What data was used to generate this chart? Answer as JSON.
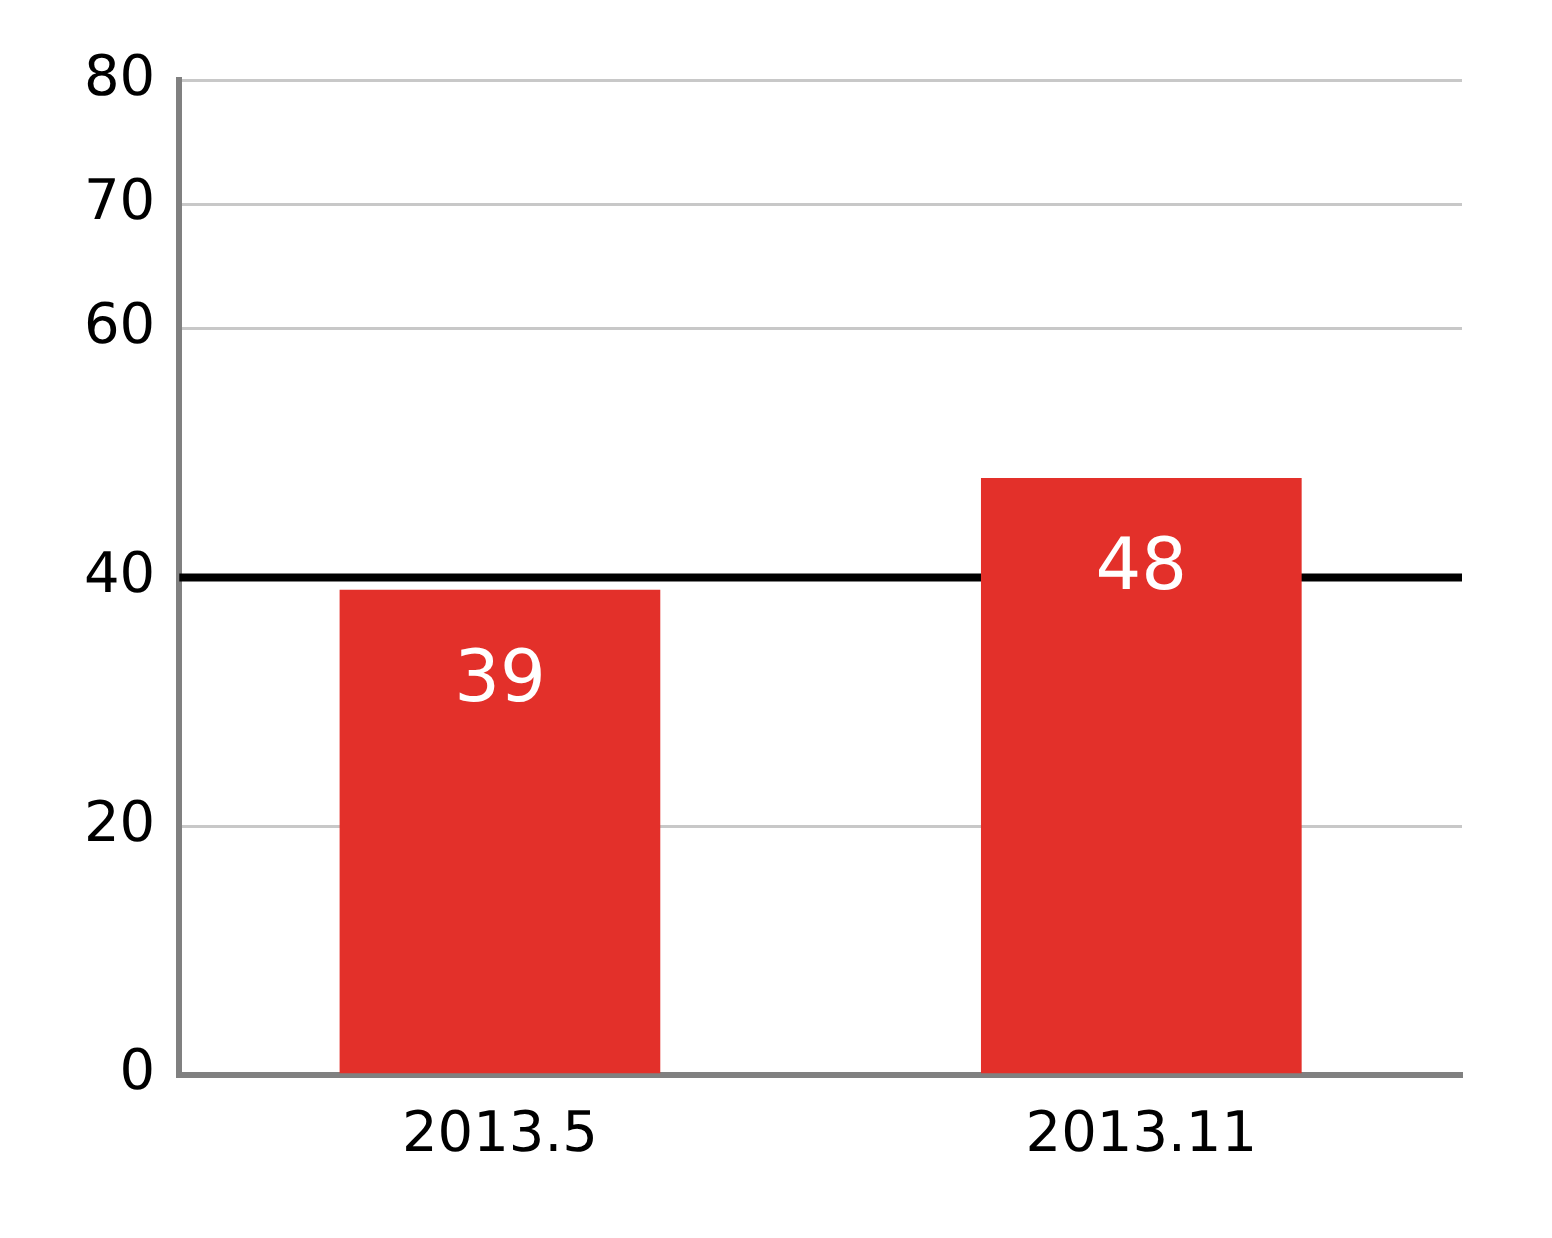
{
  "chart_data": {
    "type": "bar",
    "categories": [
      "2013.5",
      "2013.11"
    ],
    "values": [
      39,
      48
    ],
    "color": "#e3302a",
    "ylim": [
      0,
      80
    ],
    "yticks": [
      0,
      20,
      40,
      60,
      70,
      80
    ],
    "grid": "y",
    "data_labels": true,
    "ref_lines": [
      {
        "axis": "y",
        "value": 40,
        "color": "#000000"
      }
    ]
  }
}
